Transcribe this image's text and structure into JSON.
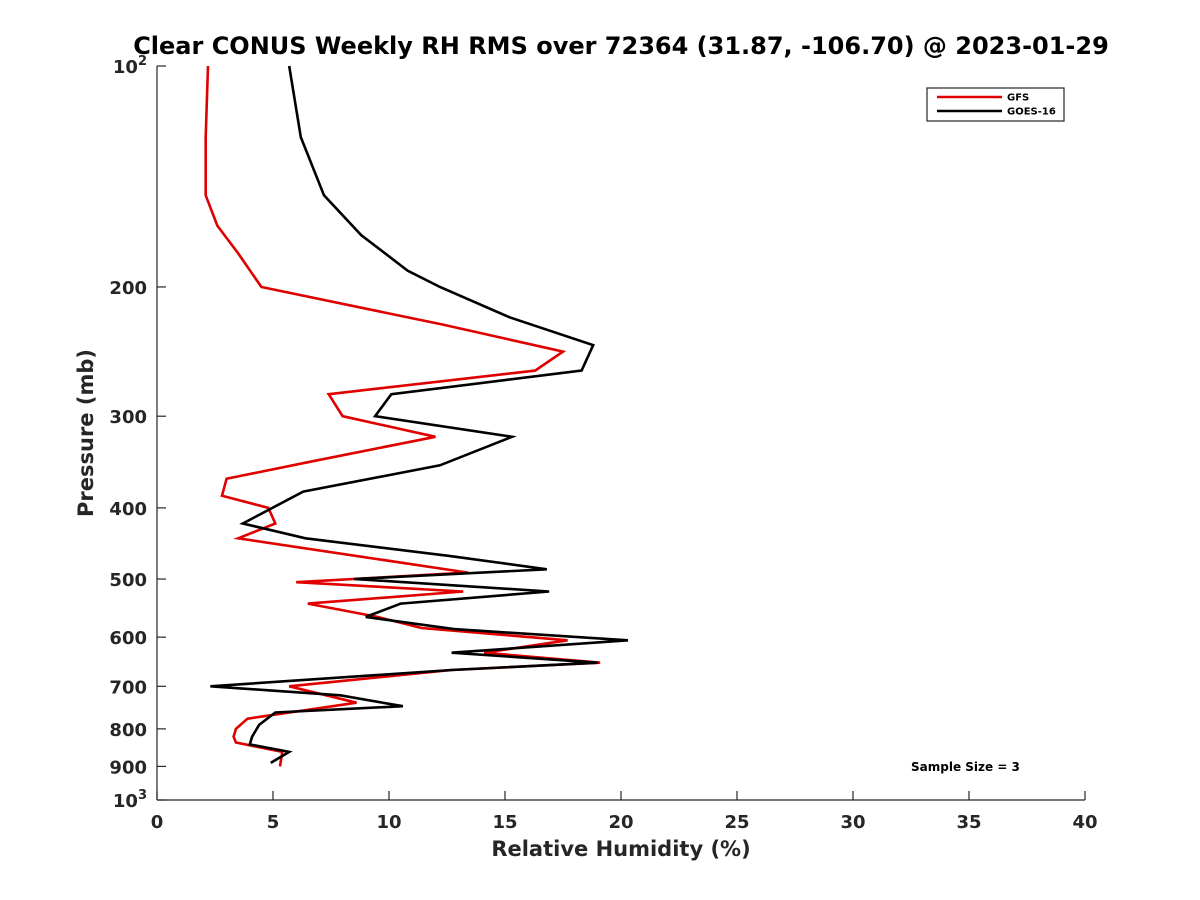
{
  "chart_data": {
    "type": "line",
    "title": "Clear CONUS Weekly RH RMS over 72364 (31.87, -106.70) @ 2023-01-29",
    "xlabel": "Relative Humidity (%)",
    "ylabel": "Pressure (mb)",
    "xlim": [
      0,
      40
    ],
    "ylim": [
      100,
      1000
    ],
    "yscale": "log",
    "y_reversed": true,
    "grid": false,
    "legend_position": "top-right",
    "x_ticks": [
      0,
      5,
      10,
      15,
      20,
      25,
      30,
      35,
      40
    ],
    "x_tick_labels": [
      "0",
      "5",
      "10",
      "15",
      "20",
      "25",
      "30",
      "35",
      "40"
    ],
    "y_ticks": [
      100,
      200,
      300,
      400,
      500,
      600,
      700,
      800,
      900,
      1000
    ],
    "y_tick_labels": [
      {
        "base": "10",
        "exp": "2"
      },
      {
        "base": "200",
        "exp": ""
      },
      {
        "base": "300",
        "exp": ""
      },
      {
        "base": "400",
        "exp": ""
      },
      {
        "base": "500",
        "exp": ""
      },
      {
        "base": "600",
        "exp": ""
      },
      {
        "base": "700",
        "exp": ""
      },
      {
        "base": "800",
        "exp": ""
      },
      {
        "base": "900",
        "exp": ""
      },
      {
        "base": "10",
        "exp": "3"
      }
    ],
    "annotation": "Sample Size = 3",
    "series": [
      {
        "name": "GFS",
        "color": "#e00000",
        "points": [
          [
            2.2,
            100
          ],
          [
            2.1,
            125
          ],
          [
            2.1,
            150
          ],
          [
            2.6,
            165
          ],
          [
            3.5,
            180
          ],
          [
            4.5,
            200
          ],
          [
            12.3,
            225
          ],
          [
            17.5,
            245
          ],
          [
            16.3,
            260
          ],
          [
            7.4,
            280
          ],
          [
            8.0,
            300
          ],
          [
            12.0,
            320
          ],
          [
            6.8,
            345
          ],
          [
            3.0,
            365
          ],
          [
            2.8,
            385
          ],
          [
            4.8,
            400
          ],
          [
            5.1,
            420
          ],
          [
            3.5,
            440
          ],
          [
            13.4,
            490
          ],
          [
            6.0,
            505
          ],
          [
            13.2,
            520
          ],
          [
            6.5,
            540
          ],
          [
            9.5,
            563
          ],
          [
            11.4,
            583
          ],
          [
            17.7,
            606
          ],
          [
            14.1,
            630
          ],
          [
            19.1,
            650
          ],
          [
            12.7,
            665
          ],
          [
            5.7,
            700
          ],
          [
            8.6,
            737
          ],
          [
            3.9,
            775
          ],
          [
            3.4,
            800
          ],
          [
            3.3,
            820
          ],
          [
            3.4,
            835
          ],
          [
            5.4,
            860
          ],
          [
            5.3,
            900
          ]
        ]
      },
      {
        "name": "GOES-16",
        "color": "#000000",
        "points": [
          [
            5.7,
            100
          ],
          [
            6.2,
            125
          ],
          [
            7.2,
            150
          ],
          [
            8.8,
            170
          ],
          [
            10.8,
            190
          ],
          [
            12.2,
            200
          ],
          [
            15.2,
            220
          ],
          [
            18.8,
            240
          ],
          [
            18.3,
            260
          ],
          [
            10.1,
            280
          ],
          [
            9.4,
            300
          ],
          [
            15.3,
            320
          ],
          [
            12.2,
            350
          ],
          [
            6.3,
            380
          ],
          [
            3.7,
            420
          ],
          [
            6.4,
            440
          ],
          [
            12.6,
            465
          ],
          [
            16.8,
            485
          ],
          [
            8.5,
            500
          ],
          [
            16.9,
            520
          ],
          [
            10.5,
            540
          ],
          [
            9.0,
            563
          ],
          [
            12.8,
            585
          ],
          [
            20.3,
            606
          ],
          [
            12.7,
            630
          ],
          [
            19.0,
            650
          ],
          [
            12.7,
            665
          ],
          [
            2.3,
            700
          ],
          [
            7.9,
            720
          ],
          [
            10.6,
            745
          ],
          [
            5.1,
            760
          ],
          [
            4.4,
            790
          ],
          [
            4.1,
            820
          ],
          [
            4.0,
            840
          ],
          [
            5.7,
            860
          ],
          [
            4.9,
            890
          ]
        ]
      }
    ]
  }
}
